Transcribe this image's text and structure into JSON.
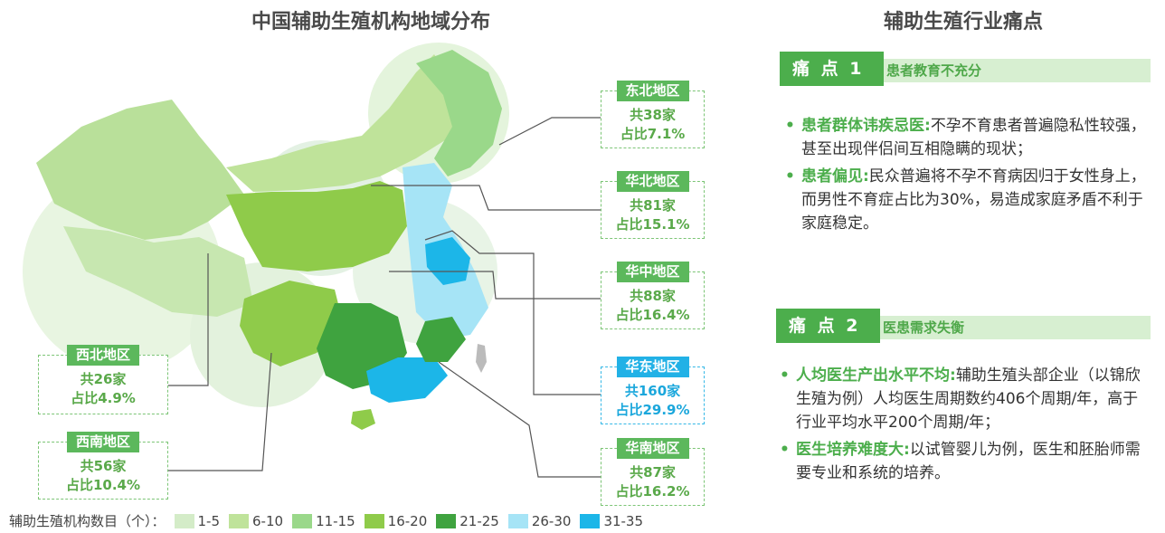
{
  "map_title": "中国辅助生殖机构地域分布",
  "pain_title": "辅助生殖行业痛点",
  "regions": [
    {
      "name": "东北地区",
      "count": "共38家",
      "share": "占比7.1%"
    },
    {
      "name": "华北地区",
      "count": "共81家",
      "share": "占比15.1%"
    },
    {
      "name": "华中地区",
      "count": "共88家",
      "share": "占比16.4%"
    },
    {
      "name": "华东地区",
      "count": "共160家",
      "share": "占比29.9%"
    },
    {
      "name": "华南地区",
      "count": "共87家",
      "share": "占比16.2%"
    },
    {
      "name": "西北地区",
      "count": "共26家",
      "share": "占比4.9%"
    },
    {
      "name": "西南地区",
      "count": "共56家",
      "share": "占比10.4%"
    }
  ],
  "legend": {
    "label": "辅助生殖机构数目（个）：",
    "items": [
      {
        "label": "1-5",
        "color": "#d4ecc8"
      },
      {
        "label": "6-10",
        "color": "#bfe39a"
      },
      {
        "label": "11-15",
        "color": "#9ad88a"
      },
      {
        "label": "16-20",
        "color": "#8fcb4a"
      },
      {
        "label": "21-25",
        "color": "#3fa33f"
      },
      {
        "label": "26-30",
        "color": "#a6e4f6"
      },
      {
        "label": "31-35",
        "color": "#1cb6e8"
      }
    ]
  },
  "pain_points": [
    {
      "badge": "痛 点 1",
      "subtitle": "患者教育不充分",
      "items": [
        {
          "highlight": "患者群体讳疾忌医:",
          "text": "不孕不育患者普遍隐私性较强，甚至出现伴侣间互相隐瞒的现状；"
        },
        {
          "highlight": "患者偏见:",
          "text": "民众普遍将不孕不育病因归于女性身上，而男性不育症占比为30%，易造成家庭矛盾不利于家庭稳定。"
        }
      ]
    },
    {
      "badge": "痛 点 2",
      "subtitle": "医患需求失衡",
      "items": [
        {
          "highlight": "人均医生产出水平不均:",
          "text": "辅助生殖头部企业（以锦欣生殖为例）人均医生周期数约406个周期/年，高于行业平均水平200个周期/年；"
        },
        {
          "highlight": "医生培养难度大:",
          "text": "以试管婴儿为例，医生和胚胎师需要专业和系统的培养。"
        }
      ]
    }
  ]
}
